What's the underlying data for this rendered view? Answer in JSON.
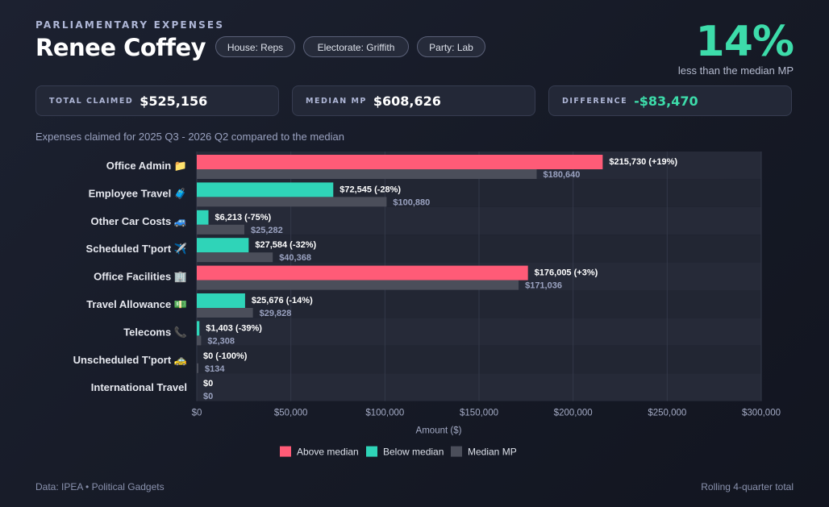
{
  "header": {
    "eyebrow": "PARLIAMENTARY EXPENSES",
    "name": "Renee Coffey",
    "pills": [
      "House: Reps",
      "Electorate: Griffith",
      "Party: Lab"
    ],
    "percent": "14%",
    "percent_caption": "less than the median MP"
  },
  "stats": {
    "total_label": "TOTAL CLAIMED",
    "total_value": "$525,156",
    "median_label": "MEDIAN MP",
    "median_value": "$608,626",
    "diff_label": "DIFFERENCE",
    "diff_value": "-$83,470"
  },
  "subtitle": "Expenses claimed for 2025 Q3 - 2026 Q2 compared to the median",
  "footer": {
    "source": "Data: IPEA • Political Gadgets",
    "note": "Rolling 4-quarter total"
  },
  "colors": {
    "above": "#ff5b77",
    "below": "#2fd4b8",
    "median": "#4b4e5a",
    "accent": "#3ddcaa"
  },
  "chart_data": {
    "type": "bar",
    "orientation": "horizontal",
    "xlabel": "Amount ($)",
    "xlim": [
      0,
      300000
    ],
    "xticks": [
      0,
      50000,
      100000,
      150000,
      200000,
      250000,
      300000
    ],
    "xtick_labels": [
      "$0",
      "$50,000",
      "$100,000",
      "$150,000",
      "$200,000",
      "$250,000",
      "$300,000"
    ],
    "grid": true,
    "legend_position": "bottom",
    "legend": [
      "Above median",
      "Below median",
      "Median MP"
    ],
    "categories": [
      "Office Admin 📁",
      "Employee Travel 🧳",
      "Other Car Costs 🚙",
      "Scheduled T'port ✈️",
      "Office Facilities 🏢",
      "Travel Allowance 💵",
      "Telecoms 📞",
      "Unscheduled T'port 🚕",
      "International Travel"
    ],
    "series": [
      {
        "name": "Renee Coffey",
        "values": [
          215730,
          72545,
          6213,
          27584,
          176005,
          25676,
          1403,
          0,
          0
        ],
        "labels": [
          "$215,730 (+19%)",
          "$72,545 (-28%)",
          "$6,213 (-75%)",
          "$27,584 (-32%)",
          "$176,005 (+3%)",
          "$25,676 (-14%)",
          "$1,403 (-39%)",
          "$0 (-100%)",
          "$0"
        ],
        "status": [
          "above",
          "below",
          "below",
          "below",
          "above",
          "below",
          "below",
          "below",
          "below"
        ]
      },
      {
        "name": "Median MP",
        "values": [
          180640,
          100880,
          25282,
          40368,
          171036,
          29828,
          2308,
          134,
          0
        ],
        "labels": [
          "$180,640",
          "$100,880",
          "$25,282",
          "$40,368",
          "$171,036",
          "$29,828",
          "$2,308",
          "$134",
          "$0"
        ]
      }
    ]
  }
}
